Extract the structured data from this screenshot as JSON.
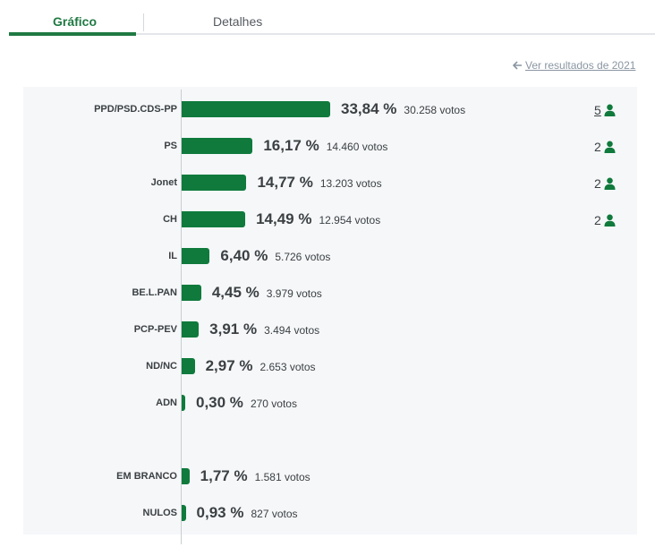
{
  "tabs": {
    "chart": "Gráfico",
    "details": "Detalhes"
  },
  "back_link": "Ver resultados de 2021",
  "colors": {
    "accent": "#1f7a43",
    "bar": "#0f7a3c",
    "panel": "#f5f7f9"
  },
  "icons": {
    "back": "arrow-left-icon",
    "seat": "person-icon"
  },
  "chart_data": {
    "type": "bar",
    "orientation": "horizontal",
    "unit": "%",
    "xlim": [
      0,
      100
    ],
    "grid": false,
    "categories": [
      "PPD/PSD.CDS-PP",
      "PS",
      "Jonet",
      "CH",
      "IL",
      "BE.L.PAN",
      "PCP-PEV",
      "ND/NC",
      "ADN",
      "EM BRANCO",
      "NULOS"
    ],
    "values": [
      33.84,
      16.17,
      14.77,
      14.49,
      6.4,
      4.45,
      3.91,
      2.97,
      0.3,
      1.77,
      0.93
    ],
    "rows": [
      {
        "party": "PPD/PSD.CDS-PP",
        "pct": 33.84,
        "pct_label": "33,84 %",
        "votes": "30.258 votos",
        "seats": "5"
      },
      {
        "party": "PS",
        "pct": 16.17,
        "pct_label": "16,17 %",
        "votes": "14.460 votos",
        "seats": "2"
      },
      {
        "party": "Jonet",
        "pct": 14.77,
        "pct_label": "14,77 %",
        "votes": "13.203 votos",
        "seats": "2"
      },
      {
        "party": "CH",
        "pct": 14.49,
        "pct_label": "14,49 %",
        "votes": "12.954 votos",
        "seats": "2"
      },
      {
        "party": "IL",
        "pct": 6.4,
        "pct_label": "6,40 %",
        "votes": "5.726 votos",
        "seats": ""
      },
      {
        "party": "BE.L.PAN",
        "pct": 4.45,
        "pct_label": "4,45 %",
        "votes": "3.979 votos",
        "seats": ""
      },
      {
        "party": "PCP-PEV",
        "pct": 3.91,
        "pct_label": "3,91 %",
        "votes": "3.494 votos",
        "seats": ""
      },
      {
        "party": "ND/NC",
        "pct": 2.97,
        "pct_label": "2,97 %",
        "votes": "2.653 votos",
        "seats": ""
      },
      {
        "party": "ADN",
        "pct": 0.3,
        "pct_label": "0,30 %",
        "votes": "270 votos",
        "seats": ""
      },
      {
        "party": "EM BRANCO",
        "pct": 1.77,
        "pct_label": "1,77 %",
        "votes": "1.581 votos",
        "seats": ""
      },
      {
        "party": "NULOS",
        "pct": 0.93,
        "pct_label": "0,93 %",
        "votes": "827 votos",
        "seats": ""
      }
    ]
  }
}
